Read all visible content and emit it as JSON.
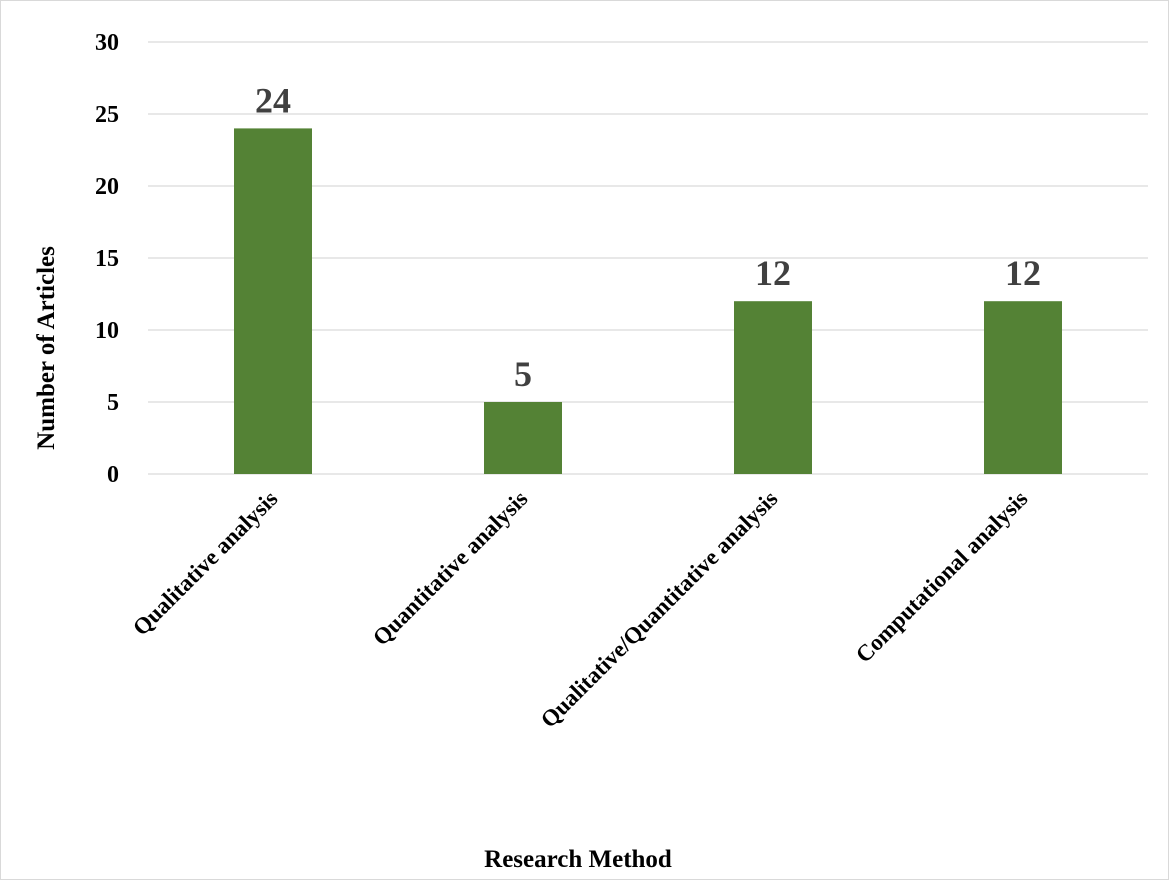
{
  "chart_data": {
    "type": "bar",
    "title": "",
    "xlabel": "Research Method",
    "ylabel": "Number of Articles",
    "categories": [
      "Qualitative analysis",
      "Quantitative analysis",
      "Qualitative/Quantitative analysis",
      "Computational analysis"
    ],
    "values": [
      24,
      5,
      12,
      12
    ],
    "ylim": [
      0,
      30
    ],
    "yticks": [
      0,
      5,
      10,
      15,
      20,
      25,
      30
    ],
    "grid": true,
    "legend": "none",
    "bar_color": "#548235"
  }
}
